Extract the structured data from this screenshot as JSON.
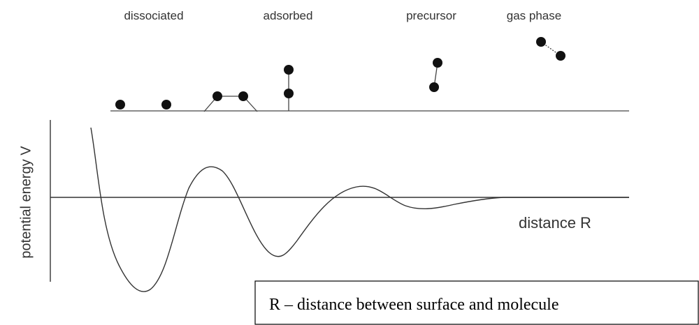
{
  "labels": {
    "dissociated": "dissociated",
    "adsorbed": "adsorbed",
    "precursor": "precursor",
    "gas_phase": "gas phase"
  },
  "axes": {
    "y_label": "potential energy  V",
    "x_label": "distance  R"
  },
  "note": "R – distance between surface and molecule"
}
